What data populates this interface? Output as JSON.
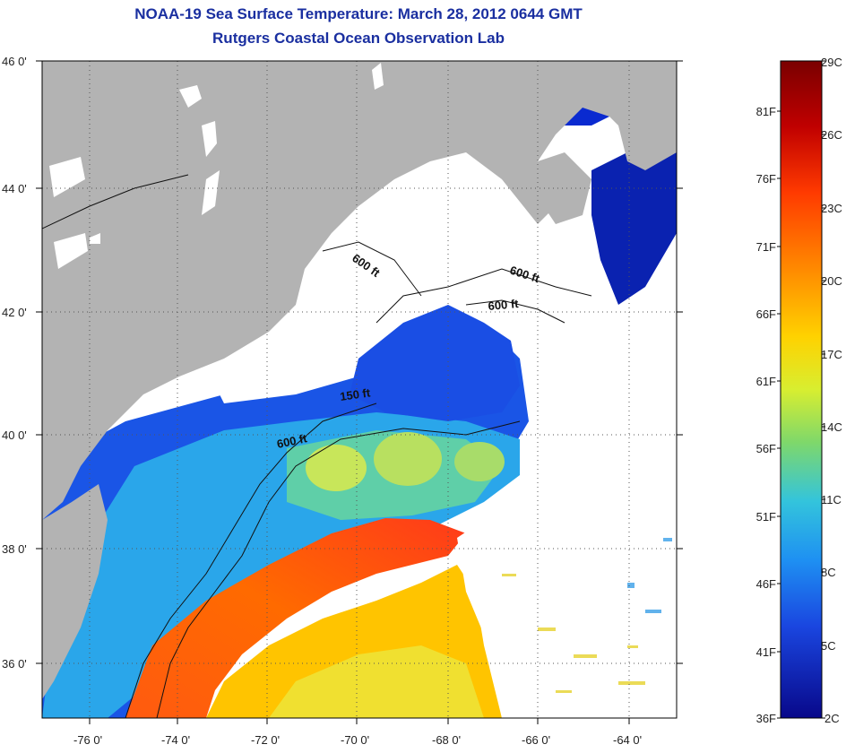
{
  "title": "NOAA-19 Sea Surface Temperature:  March 28, 2012 0644 GMT",
  "subtitle": "Rutgers Coastal Ocean Observation Lab",
  "lat_labels": [
    "46 0'",
    "44 0'",
    "42 0'",
    "40 0'",
    "38 0'",
    "36 0'"
  ],
  "lon_labels": [
    "-76 0'",
    "-74 0'",
    "-72 0'",
    "-70 0'",
    "-68 0'",
    "-66 0'",
    "-64 0'"
  ],
  "contour_labels": [
    "600 ft",
    "600 ft",
    "600 ft",
    "150 ft",
    "600 ft"
  ],
  "colorbar": {
    "celsius_labels": [
      "29C",
      "26C",
      "23C",
      "20C",
      "17C",
      "14C",
      "11C",
      "8C",
      "5C",
      "2C"
    ],
    "fahrenheit_labels": [
      "81F",
      "76F",
      "71F",
      "66F",
      "61F",
      "56F",
      "51F",
      "46F",
      "41F",
      "36F"
    ],
    "colors": [
      "#7a0000",
      "#d40000",
      "#ff5a00",
      "#ffae00",
      "#f2e81a",
      "#8fd84a",
      "#3fc8d8",
      "#1e8ff0",
      "#1a3ce0",
      "#0a0a90"
    ]
  },
  "colors": {
    "title": "#1a2fa0",
    "land": "#b3b3b3",
    "cloud": "#ffffff",
    "frame": "#000000"
  }
}
